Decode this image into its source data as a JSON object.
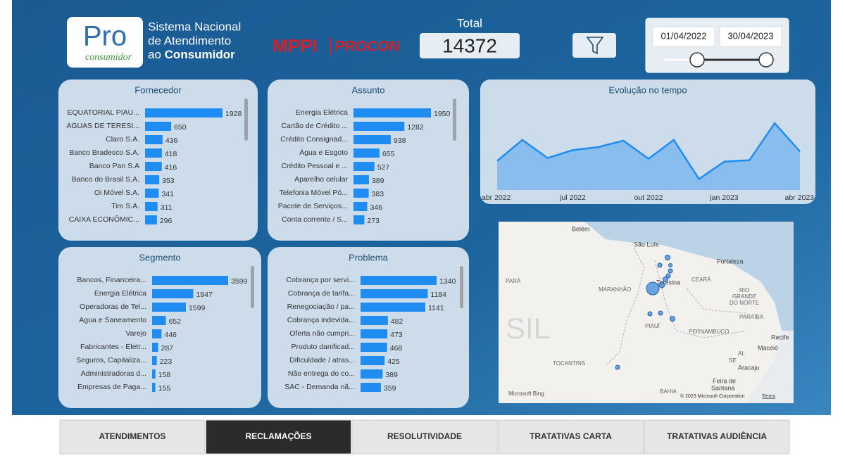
{
  "header": {
    "logo_main": "Pro",
    "logo_sub": "consumidor",
    "title_lines": [
      "Sistema Nacional",
      "de Atendimento"
    ],
    "title_last_prefix": "ao",
    "title_last_bold": "Consumidor",
    "brand_left": "MPPI",
    "brand_right": "PROCON"
  },
  "total": {
    "label": "Total",
    "value": 14372
  },
  "date_range": {
    "start": "01/04/2022",
    "end": "30/04/2023"
  },
  "panels": [
    {
      "title": "Fornecedor",
      "categories": [
        "EQUATORIAL PIAU...",
        "AGUAS DE TERESI...",
        "Claro S.A.",
        "Banco Bradesco S.A.",
        "Banco Pan S.A",
        "Banco do Brasil S.A.",
        "Oi Móvel S.A.",
        "Tim S.A.",
        "CAIXA ECONÔMIC..."
      ],
      "values": [
        1928,
        650,
        436,
        418,
        416,
        353,
        341,
        311,
        296
      ]
    },
    {
      "title": "Assunto",
      "categories": [
        "Energia Elétrica",
        "Cartão de Crédito ...",
        "Crédito Consignad...",
        "Água e Esgoto",
        "Crédito Pessoal e ...",
        "Aparelho celular",
        "Telefonia Móvel Pó...",
        "Pacote de Serviços...",
        "Conta corrente / S..."
      ],
      "values": [
        1950,
        1282,
        938,
        655,
        527,
        389,
        383,
        346,
        273
      ]
    },
    {
      "title": "Segmento",
      "categories": [
        "Bancos, Financeira...",
        "Energia Elétrica",
        "Operadoras de Tel...",
        "Agua e Saneamento",
        "Varejo",
        "Fabricantes - Eletr...",
        "Seguros, Capitaliza...",
        "Administradoras d...",
        "Empresas de Paga..."
      ],
      "values": [
        3599,
        1947,
        1599,
        652,
        446,
        287,
        223,
        158,
        155
      ]
    },
    {
      "title": "Problema",
      "categories": [
        "Cobrança por servi...",
        "Cobrança de tarifa...",
        "Renegociação / pa...",
        "Cobrança indevida...",
        "Oferta não cumpri...",
        "Produto danificad...",
        "Dificuldade / atras...",
        "Não entrega do co...",
        "SAC - Demanda nã..."
      ],
      "values": [
        1340,
        1184,
        1141,
        482,
        473,
        468,
        425,
        389,
        359
      ]
    }
  ],
  "timeline": {
    "title": "Evolução no tempo",
    "x_labels": [
      "abr 2022",
      "jul 2022",
      "out 2022",
      "jan 2023",
      "abr 2023"
    ],
    "values": [
      837,
      1443,
      920,
      1150,
      1234,
      1422,
      899,
      1443,
      314,
      816,
      858,
      1925,
      1109
    ]
  },
  "map": {
    "places": [
      "Belém",
      "São Luís",
      "Fortaleza",
      "PARÁ",
      "MARANHÃO",
      "Teresina",
      "CEARÁ",
      "RIO",
      "GRANDE",
      "DO NORTE",
      "PARAÍBA",
      "PIAUÍ",
      "PERNAMBUCO",
      "Recife",
      "AL",
      "Maceió",
      "SE",
      "Aracaju",
      "TOCANTINS",
      "BAHIA",
      "Feira de",
      "Santana",
      "SIL"
    ],
    "attribution": "Microsoft Bing",
    "copyright": "© 2023 Microsoft Corporation",
    "terms": "Terms"
  },
  "tabs": [
    "ATENDIMENTOS",
    "RECLAMAÇÕES",
    "RESOLUTIVIDADE",
    "TRATATIVAS CARTA",
    "TRATATIVAS AUDIÊNCIA"
  ]
}
